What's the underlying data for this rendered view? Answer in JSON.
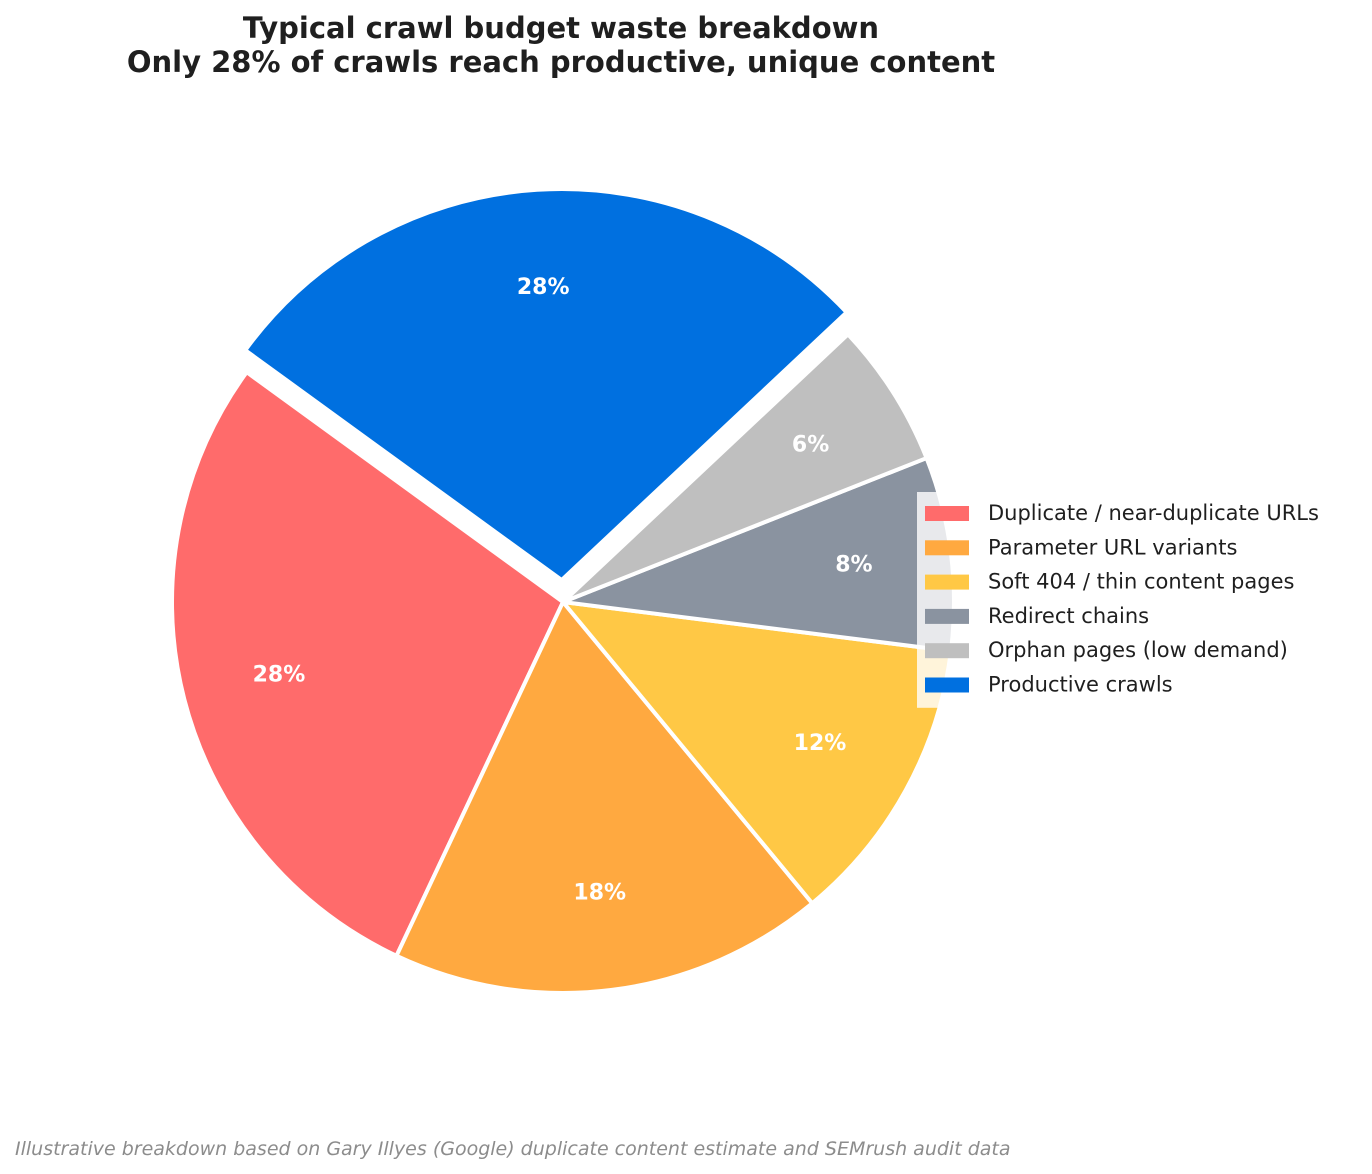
{
  "chart_data": {
    "type": "pie",
    "title": "Typical crawl budget waste breakdown",
    "subtitle": "Only 28% of crawls reach productive, unique content",
    "slices": [
      {
        "label": "Duplicate / near-duplicate URLs",
        "value": 28,
        "display": "28%",
        "color": "#ff6b6b",
        "exploded": false
      },
      {
        "label": "Parameter URL variants",
        "value": 18,
        "display": "18%",
        "color": "#ffa940",
        "exploded": false
      },
      {
        "label": "Soft 404 / thin content pages",
        "value": 12,
        "display": "12%",
        "color": "#ffc845",
        "exploded": false
      },
      {
        "label": "Redirect chains",
        "value": 8,
        "display": "8%",
        "color": "#8a93a0",
        "exploded": false
      },
      {
        "label": "Orphan pages (low demand)",
        "value": 6,
        "display": "6%",
        "color": "#bfbfbf",
        "exploded": false
      },
      {
        "label": "Productive crawls",
        "value": 28,
        "display": "28%",
        "color": "#0070e0",
        "exploded": true
      }
    ],
    "legend_position": "right",
    "footnote": "Illustrative breakdown based on Gary Illyes (Google) duplicate content estimate and SEMrush audit data"
  }
}
